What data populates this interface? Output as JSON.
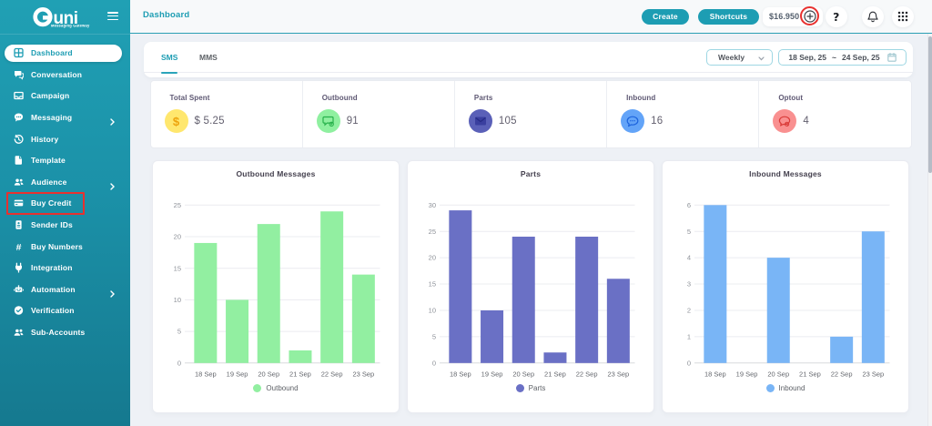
{
  "brand": {
    "name": "Guni",
    "tagline": "Messaging Gateway",
    "accent_color": "#1d9db3",
    "sidebar_gradient": [
      "#20a0b4",
      "#15798f"
    ]
  },
  "annotations": {
    "color": "#e8312f",
    "highlighted": [
      "buy-credit-menu-item",
      "balance-topup-button"
    ]
  },
  "sidebar": {
    "items": [
      {
        "label": "Dashboard",
        "icon": "dashboard-icon",
        "active": true
      },
      {
        "label": "Conversation",
        "icon": "conversation-icon"
      },
      {
        "label": "Campaign",
        "icon": "campaign-icon"
      },
      {
        "label": "Messaging",
        "icon": "messaging-icon",
        "expandable": true
      },
      {
        "label": "History",
        "icon": "history-icon"
      },
      {
        "label": "Template",
        "icon": "template-icon"
      },
      {
        "label": "Audience",
        "icon": "audience-icon",
        "expandable": true
      },
      {
        "label": "Buy Credit",
        "icon": "buy-credit-icon",
        "annotated": true
      },
      {
        "label": "Sender IDs",
        "icon": "sender-ids-icon"
      },
      {
        "label": "Buy Numbers",
        "icon": "buy-numbers-icon"
      },
      {
        "label": "Integration",
        "icon": "integration-icon"
      },
      {
        "label": "Automation",
        "icon": "automation-icon",
        "expandable": true
      },
      {
        "label": "Verification",
        "icon": "verification-icon"
      },
      {
        "label": "Sub-Accounts",
        "icon": "sub-accounts-icon"
      }
    ]
  },
  "header": {
    "title": "Dashboard",
    "create_label": "Create",
    "shortcuts_label": "Shortcuts",
    "balance": "$16.950",
    "icons": [
      "plus-topup-icon",
      "help-icon",
      "bell-icon",
      "apps-grid-icon"
    ],
    "help_glyph": "?"
  },
  "tabs": {
    "sms": "SMS",
    "mms": "MMS",
    "active": "SMS"
  },
  "filters": {
    "period": "Weekly",
    "date_start": "18 Sep, 25",
    "date_separator": "~",
    "date_end": "24 Sep, 25"
  },
  "stats": [
    {
      "label": "Total Spent",
      "value": "$ 5.25",
      "icon": "dollar-icon",
      "circle_color": "#ffe76e",
      "icon_color": "#eda30c"
    },
    {
      "label": "Outbound",
      "value": "91",
      "icon": "message-sent-icon",
      "circle_color": "#8ff0a0",
      "icon_color": "#27b14b"
    },
    {
      "label": "Parts",
      "value": "105",
      "icon": "envelope-icon",
      "circle_color": "#5a60b8",
      "icon_color": "#32379b"
    },
    {
      "label": "Inbound",
      "value": "16",
      "icon": "chat-dots-icon",
      "circle_color": "#63a4f8",
      "icon_color": "#1c63dd"
    },
    {
      "label": "Optout",
      "value": "4",
      "icon": "chat-block-icon",
      "circle_color": "#f99090",
      "icon_color": "#d93a38"
    }
  ],
  "chart_data": [
    {
      "type": "bar",
      "title": "Outbound Messages",
      "categories": [
        "18 Sep",
        "19 Sep",
        "20 Sep",
        "21 Sep",
        "22 Sep",
        "23 Sep"
      ],
      "series": [
        {
          "name": "Outbound",
          "values": [
            19,
            10,
            22,
            2,
            24,
            14
          ]
        }
      ],
      "ylim": [
        0,
        25
      ],
      "ytick": 5,
      "grid": true,
      "color": "#92efa1",
      "legend_position": "bottom"
    },
    {
      "type": "bar",
      "title": "Parts",
      "categories": [
        "18 Sep",
        "19 Sep",
        "20 Sep",
        "21 Sep",
        "22 Sep",
        "23 Sep"
      ],
      "series": [
        {
          "name": "Parts",
          "values": [
            29,
            10,
            24,
            2,
            24,
            16
          ]
        }
      ],
      "ylim": [
        0,
        30
      ],
      "ytick": 5,
      "grid": true,
      "color": "#6a70c5",
      "legend_position": "bottom"
    },
    {
      "type": "bar",
      "title": "Inbound Messages",
      "categories": [
        "18 Sep",
        "19 Sep",
        "20 Sep",
        "21 Sep",
        "22 Sep",
        "23 Sep"
      ],
      "series": [
        {
          "name": "Inbound",
          "values": [
            6,
            0,
            4,
            0,
            1,
            5
          ]
        }
      ],
      "ylim": [
        0,
        6
      ],
      "ytick": 1,
      "grid": true,
      "color": "#79b5f6",
      "legend_position": "bottom"
    }
  ]
}
